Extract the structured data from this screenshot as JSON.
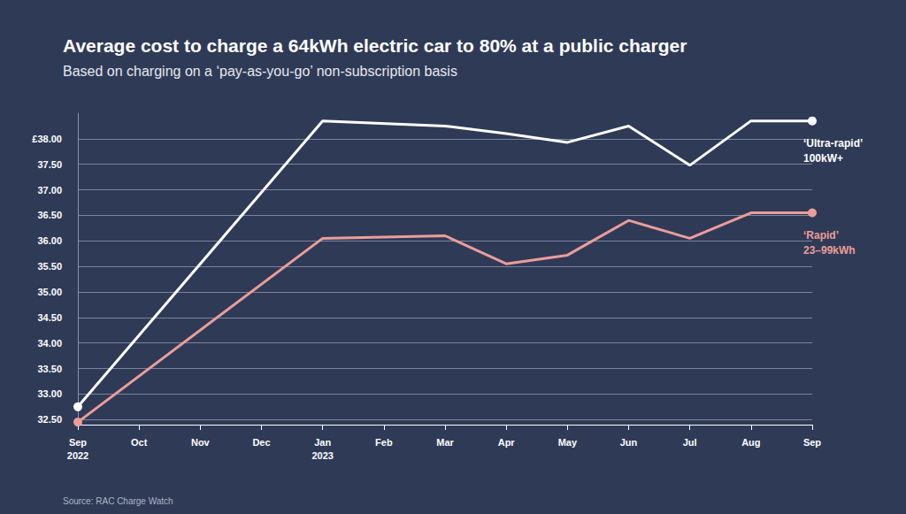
{
  "chart_data": {
    "type": "line",
    "title": "Average cost to charge a 64kWh electric car to 80% at a public charger",
    "subtitle": "Based on charging on a ‘pay-as-you-go’ non-subscription basis",
    "source": "Source: RAC Charge Watch",
    "categories": [
      "Sep\n2022",
      "Oct",
      "Nov",
      "Dec",
      "Jan\n2023",
      "Feb",
      "Mar",
      "Apr",
      "May",
      "Jun",
      "Jul",
      "Aug",
      "Sep"
    ],
    "series": [
      {
        "name": "‘Ultra-rapid’\n100kW+",
        "color": "#ffffff",
        "marker": "circle",
        "values": [
          32.75,
          null,
          null,
          null,
          38.35,
          null,
          38.25,
          38.1,
          37.93,
          38.25,
          37.48,
          38.35,
          38.35
        ]
      },
      {
        "name": "‘Rapid’\n23–99kWh",
        "color": "#ec9d99",
        "marker": "circle",
        "values": [
          32.45,
          null,
          null,
          null,
          36.05,
          null,
          36.1,
          35.55,
          35.72,
          36.4,
          36.05,
          36.55,
          36.55
        ]
      }
    ],
    "ylim": [
      32.4,
      38.5
    ],
    "yticks": [
      {
        "value": 32.5,
        "label": "32.50"
      },
      {
        "value": 33,
        "label": "33.00"
      },
      {
        "value": 33.5,
        "label": "33.50"
      },
      {
        "value": 34,
        "label": "34.00"
      },
      {
        "value": 34.5,
        "label": "34.50"
      },
      {
        "value": 35,
        "label": "35.00"
      },
      {
        "value": 35.5,
        "label": "35.50"
      },
      {
        "value": 36,
        "label": "36.00"
      },
      {
        "value": 36.5,
        "label": "36.50"
      },
      {
        "value": 37,
        "label": "37.00"
      },
      {
        "value": 37.5,
        "label": "37.50"
      },
      {
        "value": 38,
        "label": "£38.00"
      }
    ],
    "grid": true
  }
}
